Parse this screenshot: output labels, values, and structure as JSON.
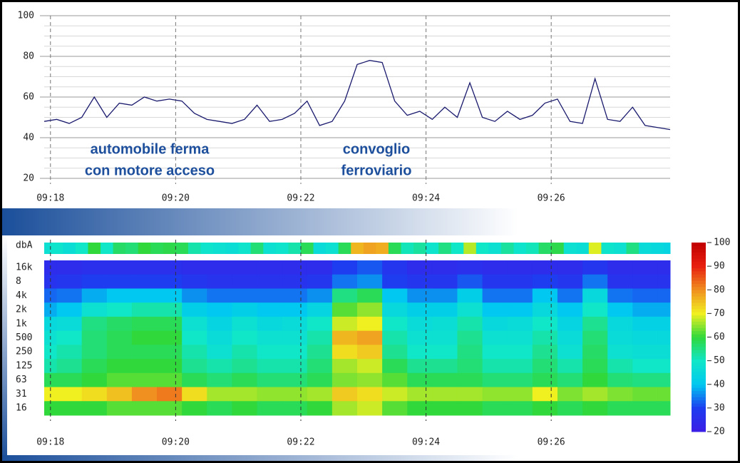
{
  "chart_data": [
    {
      "type": "line",
      "x": [
        557.9,
        558.1,
        558.3,
        558.5,
        558.7,
        558.9,
        559.1,
        559.3,
        559.5,
        559.7,
        559.9,
        560.1,
        560.3,
        560.5,
        560.7,
        560.9,
        561.1,
        561.3,
        561.5,
        561.7,
        561.9,
        562.1,
        562.3,
        562.5,
        562.7,
        562.9,
        563.1,
        563.3,
        563.5,
        563.7,
        563.9,
        564.1,
        564.3,
        564.5,
        564.7,
        564.9,
        565.1,
        565.3,
        565.5,
        565.7,
        565.9,
        566.1,
        566.3,
        566.5,
        566.7,
        566.9,
        567.1,
        567.3,
        567.5,
        567.7,
        567.9
      ],
      "series": [
        {
          "name": "dbA",
          "color": "#1a1a6e",
          "values": [
            48,
            49,
            47,
            50,
            60,
            50,
            57,
            56,
            60,
            58,
            59,
            58,
            52,
            49,
            48,
            47,
            49,
            56,
            48,
            49,
            52,
            58,
            46,
            48,
            58,
            76,
            78,
            77,
            58,
            51,
            53,
            49,
            55,
            50,
            67,
            50,
            48,
            53,
            49,
            51,
            57,
            59,
            48,
            47,
            69,
            49,
            48,
            55,
            46,
            45,
            44
          ]
        }
      ],
      "xlim": [
        557.9,
        567.9
      ],
      "xticks": [
        {
          "value": 558,
          "label": "09:18"
        },
        {
          "value": 560,
          "label": "09:20"
        },
        {
          "value": 562,
          "label": "09:22"
        },
        {
          "value": 564,
          "label": "09:24"
        },
        {
          "value": 566,
          "label": "09:26"
        }
      ],
      "ylim": [
        20,
        100
      ],
      "yticks": [
        20,
        40,
        60,
        80,
        100
      ],
      "minor_grid_step": 5,
      "grid": true,
      "annotations": [
        [
          "automobile ferma",
          "con motore acceso"
        ],
        [
          "convoglio",
          "ferroviario"
        ]
      ]
    },
    {
      "type": "heatmap",
      "strip_label": "dbA",
      "bands": [
        "16k",
        "8",
        "4k",
        "2k",
        "1k",
        "500",
        "250",
        "125",
        "63",
        "31",
        "16"
      ],
      "x": [
        557.9,
        558.3,
        558.7,
        559.1,
        559.5,
        559.9,
        560.3,
        560.7,
        561.1,
        561.5,
        561.9,
        562.3,
        562.7,
        563.1,
        563.5,
        563.9,
        564.3,
        564.7,
        565.1,
        565.5,
        565.9,
        566.3,
        566.7,
        567.1,
        567.5,
        567.9
      ],
      "z": [
        [
          25,
          25,
          26,
          26,
          26,
          26,
          25,
          25,
          25,
          25,
          25,
          25,
          30,
          32,
          28,
          25,
          25,
          26,
          25,
          25,
          25,
          25,
          28,
          25,
          25,
          25
        ],
        [
          27,
          28,
          30,
          30,
          30,
          30,
          28,
          27,
          27,
          27,
          27,
          28,
          34,
          36,
          30,
          28,
          28,
          32,
          28,
          28,
          30,
          28,
          34,
          27,
          27,
          27
        ],
        [
          33,
          34,
          38,
          40,
          40,
          40,
          36,
          34,
          34,
          34,
          34,
          36,
          55,
          58,
          40,
          36,
          36,
          42,
          34,
          34,
          40,
          34,
          45,
          34,
          33,
          33
        ],
        [
          38,
          40,
          48,
          50,
          52,
          52,
          42,
          40,
          42,
          40,
          40,
          44,
          62,
          65,
          45,
          42,
          42,
          48,
          40,
          40,
          45,
          40,
          50,
          40,
          38,
          38
        ],
        [
          45,
          46,
          55,
          57,
          58,
          58,
          48,
          44,
          48,
          45,
          46,
          50,
          68,
          70,
          50,
          46,
          47,
          52,
          45,
          46,
          50,
          44,
          54,
          45,
          43,
          43
        ],
        [
          48,
          50,
          56,
          58,
          60,
          60,
          50,
          46,
          50,
          48,
          48,
          52,
          76,
          78,
          52,
          48,
          48,
          54,
          48,
          48,
          52,
          46,
          56,
          46,
          45,
          45
        ],
        [
          50,
          52,
          56,
          58,
          58,
          58,
          52,
          48,
          52,
          50,
          50,
          54,
          72,
          74,
          54,
          50,
          50,
          55,
          50,
          50,
          54,
          48,
          57,
          48,
          47,
          47
        ],
        [
          52,
          54,
          58,
          60,
          60,
          60,
          54,
          52,
          54,
          52,
          52,
          56,
          66,
          68,
          58,
          54,
          54,
          56,
          52,
          52,
          56,
          52,
          58,
          52,
          50,
          50
        ],
        [
          58,
          58,
          60,
          62,
          62,
          62,
          58,
          56,
          58,
          56,
          56,
          58,
          64,
          65,
          62,
          58,
          58,
          58,
          56,
          56,
          58,
          56,
          60,
          56,
          55,
          55
        ],
        [
          70,
          70,
          72,
          75,
          80,
          82,
          72,
          66,
          66,
          65,
          65,
          66,
          74,
          72,
          68,
          66,
          66,
          66,
          65,
          65,
          70,
          64,
          66,
          64,
          63,
          63
        ],
        [
          60,
          60,
          60,
          62,
          62,
          62,
          60,
          58,
          60,
          58,
          58,
          60,
          66,
          68,
          62,
          60,
          60,
          60,
          58,
          58,
          60,
          58,
          60,
          58,
          58,
          58
        ]
      ],
      "colorlim": [
        20,
        100
      ],
      "colorticks": [
        20,
        30,
        40,
        50,
        60,
        70,
        80,
        90,
        100
      ],
      "colorscale": [
        "#3c1ee6",
        "#1e3cf0",
        "#00c8f0",
        "#10e6c8",
        "#30d83c",
        "#f0f020",
        "#f09020",
        "#e82010",
        "#c00000"
      ]
    }
  ]
}
